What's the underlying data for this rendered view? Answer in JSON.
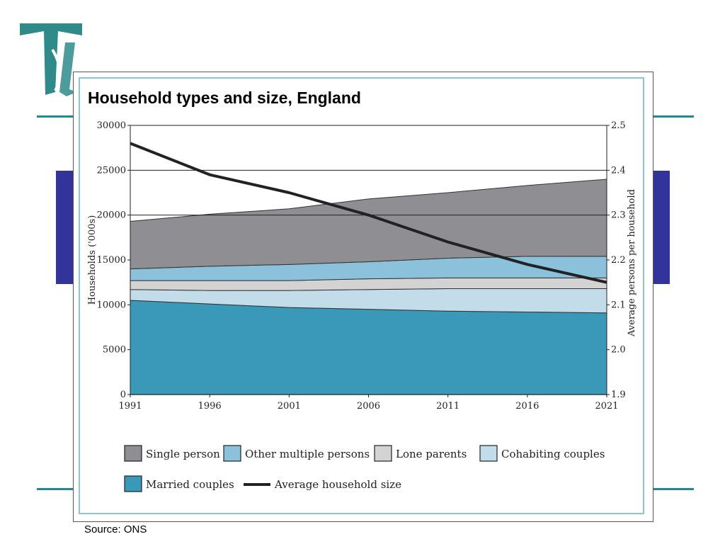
{
  "slide": {
    "logo_icon": "tt-monogram-logo",
    "accent_color": "#1e8a96",
    "bar_color": "#33349b",
    "source": "Source: ONS"
  },
  "chart_data": {
    "type": "area",
    "title": "Household types and size, England",
    "x": [
      1991,
      1996,
      2001,
      2006,
      2011,
      2016,
      2021
    ],
    "xlim": [
      1991,
      2021
    ],
    "xticks": [
      "1991",
      "1996",
      "2001",
      "2006",
      "2011",
      "2016",
      "2021"
    ],
    "ylabel": "Households ('000s)",
    "ylim": [
      0,
      30000
    ],
    "yticks": [
      "0",
      "5000",
      "10000",
      "15000",
      "20000",
      "25000",
      "30000"
    ],
    "y2label": "Average persons per household",
    "y2lim": [
      1.9,
      2.5
    ],
    "y2ticks": [
      "1.9",
      "2.0",
      "2.1",
      "2.2",
      "2.3",
      "2.4",
      "2.5"
    ],
    "stacked": true,
    "grid": "horizontal at 20000, 25000, 30000",
    "legend_position": "bottom",
    "series": [
      {
        "name": "Married couples",
        "color": "#3a98b8",
        "values": [
          10500,
          10100,
          9700,
          9500,
          9300,
          9200,
          9100
        ]
      },
      {
        "name": "Cohabiting couples",
        "color": "#c2dde9",
        "values": [
          1200,
          1500,
          1900,
          2200,
          2500,
          2600,
          2700
        ]
      },
      {
        "name": "Lone parents",
        "color": "#d3d3d3",
        "values": [
          1000,
          1100,
          1100,
          1200,
          1200,
          1200,
          1200
        ]
      },
      {
        "name": "Other multiple persons",
        "color": "#8cc1dc",
        "values": [
          1300,
          1600,
          1800,
          1900,
          2200,
          2400,
          2400
        ]
      },
      {
        "name": "Single person",
        "color": "#8e8e93",
        "values": [
          5300,
          5800,
          6200,
          7000,
          7300,
          7900,
          8600
        ]
      }
    ],
    "line_series": {
      "name": "Average household size",
      "axis": "right",
      "color": "#222222",
      "values": [
        2.46,
        2.39,
        2.35,
        2.3,
        2.24,
        2.19,
        2.15
      ]
    },
    "legend": [
      {
        "name": "Single person",
        "color": "#8e8e93",
        "marker": "box"
      },
      {
        "name": "Other multiple persons",
        "color": "#8cc1dc",
        "marker": "box"
      },
      {
        "name": "Lone parents",
        "color": "#d3d3d3",
        "marker": "box"
      },
      {
        "name": "Cohabiting couples",
        "color": "#c2dde9",
        "marker": "box"
      },
      {
        "name": "Married couples",
        "color": "#3a98b8",
        "marker": "box"
      },
      {
        "name": "Average household size",
        "color": "#222222",
        "marker": "line"
      }
    ]
  }
}
